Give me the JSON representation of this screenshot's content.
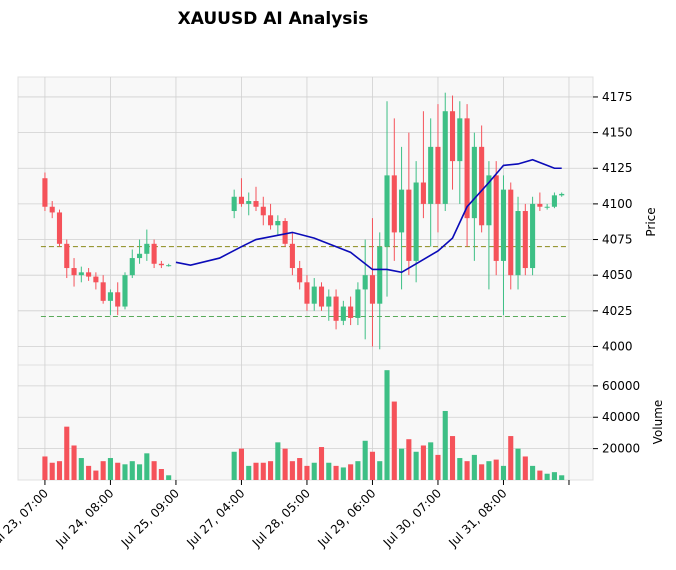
{
  "chart_data": {
    "type": "candlestick",
    "title": "XAUUSD AI Analysis",
    "x": [
      0,
      1,
      2,
      3,
      4,
      5,
      6,
      7,
      8,
      9,
      10,
      11,
      12,
      13,
      14,
      15,
      16,
      17,
      26,
      27,
      28,
      29,
      30,
      31,
      32,
      33,
      34,
      35,
      36,
      37,
      38,
      39,
      40,
      41,
      42,
      43,
      44,
      45,
      46,
      47,
      48,
      49,
      50,
      51,
      52,
      53,
      54,
      55,
      56,
      57,
      58,
      59,
      60,
      61,
      62,
      63,
      64,
      65,
      66,
      67,
      68,
      69,
      70,
      71
    ],
    "open": [
      4118,
      4098,
      4094,
      4072,
      4055,
      4050,
      4052,
      4049,
      4045,
      4032,
      4038,
      4028,
      4050,
      4062,
      4065,
      4072,
      4058,
      4057,
      4095,
      4105,
      4100,
      4102,
      4098,
      4092,
      4085,
      4088,
      4072,
      4055,
      4045,
      4030,
      4042,
      4028,
      4035,
      4018,
      4028,
      4020,
      4040,
      4050,
      4030,
      4070,
      4120,
      4080,
      4110,
      4060,
      4115,
      4100,
      4140,
      4100,
      4165,
      4130,
      4160,
      4090,
      4140,
      4085,
      4120,
      4060,
      4110,
      4050,
      4095,
      4055,
      4100,
      4098,
      4098,
      4106
    ],
    "high": [
      4122,
      4102,
      4096,
      4075,
      4062,
      4056,
      4055,
      4052,
      4050,
      4040,
      4045,
      4052,
      4068,
      4075,
      4082,
      4075,
      4060,
      4058,
      4110,
      4118,
      4108,
      4112,
      4105,
      4100,
      4092,
      4090,
      4080,
      4060,
      4050,
      4048,
      4045,
      4040,
      4040,
      4032,
      4035,
      4045,
      4075,
      4090,
      4080,
      4172,
      4160,
      4140,
      4150,
      4130,
      4165,
      4160,
      4170,
      4178,
      4176,
      4172,
      4170,
      4150,
      4155,
      4130,
      4130,
      4120,
      4115,
      4105,
      4100,
      4105,
      4108,
      4100,
      4108,
      4108
    ],
    "low": [
      4095,
      4090,
      4070,
      4048,
      4042,
      4045,
      4046,
      4040,
      4030,
      4022,
      4022,
      4026,
      4048,
      4058,
      4060,
      4055,
      4055,
      4056,
      4090,
      4098,
      4092,
      4095,
      4085,
      4082,
      4078,
      4070,
      4050,
      4040,
      4025,
      4025,
      4025,
      4018,
      4012,
      4015,
      4015,
      4015,
      4005,
      4000,
      3998,
      4035,
      4060,
      4040,
      4050,
      4045,
      4090,
      4070,
      4080,
      4095,
      4110,
      4100,
      4070,
      4060,
      4080,
      4040,
      4050,
      4022,
      4040,
      4040,
      4050,
      4050,
      4095,
      4096,
      4097,
      4105
    ],
    "close": [
      4098,
      4094,
      4072,
      4055,
      4050,
      4052,
      4049,
      4045,
      4032,
      4038,
      4028,
      4050,
      4062,
      4065,
      4072,
      4058,
      4057,
      4057,
      4105,
      4100,
      4102,
      4098,
      4092,
      4085,
      4088,
      4072,
      4055,
      4045,
      4030,
      4042,
      4028,
      4035,
      4018,
      4028,
      4020,
      4040,
      4050,
      4030,
      4070,
      4120,
      4080,
      4110,
      4060,
      4115,
      4100,
      4140,
      4100,
      4165,
      4130,
      4160,
      4090,
      4140,
      4085,
      4120,
      4060,
      4110,
      4050,
      4095,
      4055,
      4100,
      4098,
      4098,
      4106,
      4107
    ],
    "volume": [
      15000,
      11000,
      12000,
      34000,
      22000,
      14000,
      9000,
      6000,
      12000,
      14000,
      11000,
      10000,
      12000,
      10000,
      17000,
      12000,
      7000,
      3000,
      18000,
      20000,
      9000,
      11000,
      11000,
      12000,
      24000,
      20000,
      12000,
      14000,
      9000,
      11000,
      21000,
      11000,
      9000,
      8000,
      10000,
      12000,
      25000,
      18000,
      12000,
      70000,
      50000,
      20000,
      26000,
      18000,
      22000,
      24000,
      16000,
      44000,
      28000,
      14000,
      12000,
      16000,
      10000,
      12000,
      13000,
      9000,
      28000,
      20000,
      15000,
      9000,
      6000,
      4000,
      5000,
      3000
    ],
    "up_color": "#3dbf85",
    "down_color": "#f5525a",
    "ma": {
      "x": [
        18,
        20,
        24,
        27,
        29,
        34,
        37,
        42,
        45,
        47,
        49,
        51,
        54,
        56,
        58,
        61,
        63,
        65,
        67,
        69,
        70,
        71
      ],
      "values": [
        4059,
        4057,
        4062,
        4070,
        4075,
        4080,
        4076,
        4066,
        4054,
        4054,
        4052,
        4058,
        4067,
        4076,
        4098,
        4115,
        4127,
        4128,
        4131,
        4127,
        4125,
        4125
      ],
      "color": "#0b0bb8"
    },
    "hlines": [
      {
        "value": 4070,
        "color": "#8a8a1a"
      },
      {
        "value": 4021,
        "color": "#5aaa5a"
      }
    ],
    "xlim": [
      -3.7,
      75.3
    ],
    "xticks": [
      {
        "value": 0,
        "label": "Jul 23, 07:00"
      },
      {
        "value": 9,
        "label": "Jul 24, 08:00"
      },
      {
        "value": 18,
        "label": "Jul 25, 09:00"
      },
      {
        "value": 27,
        "label": "Jul 27, 04:00"
      },
      {
        "value": 36,
        "label": "Jul 28, 05:00"
      },
      {
        "value": 45,
        "label": "Jul 29, 06:00"
      },
      {
        "value": 54,
        "label": "Jul 30, 07:00"
      },
      {
        "value": 63,
        "label": "Jul 31, 08:00"
      },
      {
        "value": 72,
        "label": null
      }
    ],
    "ylim": [
      3987,
      4189
    ],
    "yticks": [
      4000,
      4025,
      4050,
      4075,
      4100,
      4125,
      4150,
      4175
    ],
    "ylabel": "Price",
    "volume_ylim": [
      0,
      73300
    ],
    "volume_yticks": [
      20000,
      40000,
      60000
    ],
    "volume_ylabel": "Volume",
    "grid": true
  }
}
